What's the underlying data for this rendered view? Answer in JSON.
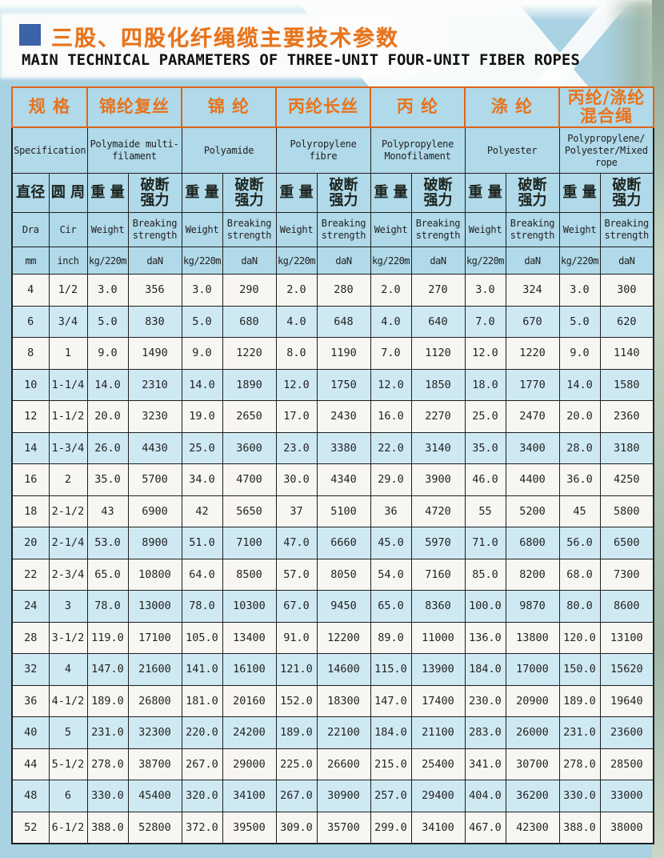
{
  "page": {
    "title_cn": "三股、四股化纤绳缆主要技术参数",
    "title_en": "MAIN TECHNICAL PARAMETERS OF THREE-UNIT FOUR-UNIT FIBER ROPES"
  },
  "colors": {
    "page_blue": "#a9d2e3",
    "header_blue": "#b0d9e9",
    "row_blue": "#cfe9f3",
    "row_white": "#f8f6f2",
    "orange_text": "#e8731b",
    "orange_border": "#dd6418",
    "bullet_blue": "#3b63a7"
  },
  "table": {
    "spec_header_cn": "规 格",
    "spec_header_en": "Specification",
    "groups": [
      {
        "cn": "锦纶复丝",
        "en": "Polymaide multi-\nfilament"
      },
      {
        "cn": "锦 纶",
        "en": "Polyamide"
      },
      {
        "cn": "丙纶长丝",
        "en": "Polyropylene\nfibre"
      },
      {
        "cn": "丙 纶",
        "en": "Polypropylene\nMonofilament"
      },
      {
        "cn": "涤 纶",
        "en": "Polyester"
      },
      {
        "cn": "丙纶/涤纶\n混合绳",
        "en": "Polypropylene/\nPolyester/Mixed\nrope"
      }
    ],
    "sub_cols": {
      "dia_cn": "直径",
      "cir_cn": "圆 周",
      "weight_cn": "重 量",
      "strength_cn": "破断\n强力",
      "dia_en": "Dra",
      "cir_en": "Cir",
      "weight_en": "Weight",
      "strength_en": "Breaking\nstrength",
      "dia_unit": "mm",
      "cir_unit": "inch",
      "weight_unit": "kg/220m",
      "strength_unit": "daN"
    },
    "rows": [
      {
        "dia": "4",
        "cir": "1/2",
        "shade": false,
        "values": [
          "3.0",
          "356",
          "3.0",
          "290",
          "2.0",
          "280",
          "2.0",
          "270",
          "3.0",
          "324",
          "3.0",
          "300"
        ]
      },
      {
        "dia": "6",
        "cir": "3/4",
        "shade": true,
        "values": [
          "5.0",
          "830",
          "5.0",
          "680",
          "4.0",
          "648",
          "4.0",
          "640",
          "7.0",
          "670",
          "5.0",
          "620"
        ]
      },
      {
        "dia": "8",
        "cir": "1",
        "shade": false,
        "values": [
          "9.0",
          "1490",
          "9.0",
          "1220",
          "8.0",
          "1190",
          "7.0",
          "1120",
          "12.0",
          "1220",
          "9.0",
          "1140"
        ]
      },
      {
        "dia": "10",
        "cir": "1-1/4",
        "shade": true,
        "values": [
          "14.0",
          "2310",
          "14.0",
          "1890",
          "12.0",
          "1750",
          "12.0",
          "1850",
          "18.0",
          "1770",
          "14.0",
          "1580"
        ]
      },
      {
        "dia": "12",
        "cir": "1-1/2",
        "shade": false,
        "values": [
          "20.0",
          "3230",
          "19.0",
          "2650",
          "17.0",
          "2430",
          "16.0",
          "2270",
          "25.0",
          "2470",
          "20.0",
          "2360"
        ]
      },
      {
        "dia": "14",
        "cir": "1-3/4",
        "shade": true,
        "values": [
          "26.0",
          "4430",
          "25.0",
          "3600",
          "23.0",
          "3380",
          "22.0",
          "3140",
          "35.0",
          "3400",
          "28.0",
          "3180"
        ]
      },
      {
        "dia": "16",
        "cir": "2",
        "shade": false,
        "values": [
          "35.0",
          "5700",
          "34.0",
          "4700",
          "30.0",
          "4340",
          "29.0",
          "3900",
          "46.0",
          "4400",
          "36.0",
          "4250"
        ]
      },
      {
        "dia": "18",
        "cir": "2-1/2",
        "shade": false,
        "values": [
          "43",
          "6900",
          "42",
          "5650",
          "37",
          "5100",
          "36",
          "4720",
          "55",
          "5200",
          "45",
          "5800"
        ]
      },
      {
        "dia": "20",
        "cir": "2-1/4",
        "shade": true,
        "values": [
          "53.0",
          "8900",
          "51.0",
          "7100",
          "47.0",
          "6660",
          "45.0",
          "5970",
          "71.0",
          "6800",
          "56.0",
          "6500"
        ]
      },
      {
        "dia": "22",
        "cir": "2-3/4",
        "shade": false,
        "values": [
          "65.0",
          "10800",
          "64.0",
          "8500",
          "57.0",
          "8050",
          "54.0",
          "7160",
          "85.0",
          "8200",
          "68.0",
          "7300"
        ]
      },
      {
        "dia": "24",
        "cir": "3",
        "shade": true,
        "values": [
          "78.0",
          "13000",
          "78.0",
          "10300",
          "67.0",
          "9450",
          "65.0",
          "8360",
          "100.0",
          "9870",
          "80.0",
          "8600"
        ]
      },
      {
        "dia": "28",
        "cir": "3-1/2",
        "shade": false,
        "values": [
          "119.0",
          "17100",
          "105.0",
          "13400",
          "91.0",
          "12200",
          "89.0",
          "11000",
          "136.0",
          "13800",
          "120.0",
          "13100"
        ]
      },
      {
        "dia": "32",
        "cir": "4",
        "shade": true,
        "values": [
          "147.0",
          "21600",
          "141.0",
          "16100",
          "121.0",
          "14600",
          "115.0",
          "13900",
          "184.0",
          "17000",
          "150.0",
          "15620"
        ]
      },
      {
        "dia": "36",
        "cir": "4-1/2",
        "shade": false,
        "values": [
          "189.0",
          "26800",
          "181.0",
          "20160",
          "152.0",
          "18300",
          "147.0",
          "17400",
          "230.0",
          "20900",
          "189.0",
          "19640"
        ]
      },
      {
        "dia": "40",
        "cir": "5",
        "shade": true,
        "values": [
          "231.0",
          "32300",
          "220.0",
          "24200",
          "189.0",
          "22100",
          "184.0",
          "21100",
          "283.0",
          "26000",
          "231.0",
          "23600"
        ]
      },
      {
        "dia": "44",
        "cir": "5-1/2",
        "shade": false,
        "values": [
          "278.0",
          "38700",
          "267.0",
          "29000",
          "225.0",
          "26600",
          "215.0",
          "25400",
          "341.0",
          "30700",
          "278.0",
          "28500"
        ]
      },
      {
        "dia": "48",
        "cir": "6",
        "shade": true,
        "values": [
          "330.0",
          "45400",
          "320.0",
          "34100",
          "267.0",
          "30900",
          "257.0",
          "29400",
          "404.0",
          "36200",
          "330.0",
          "33000"
        ]
      },
      {
        "dia": "52",
        "cir": "6-1/2",
        "shade": false,
        "values": [
          "388.0",
          "52800",
          "372.0",
          "39500",
          "309.0",
          "35700",
          "299.0",
          "34100",
          "467.0",
          "42300",
          "388.0",
          "38000"
        ]
      }
    ]
  }
}
